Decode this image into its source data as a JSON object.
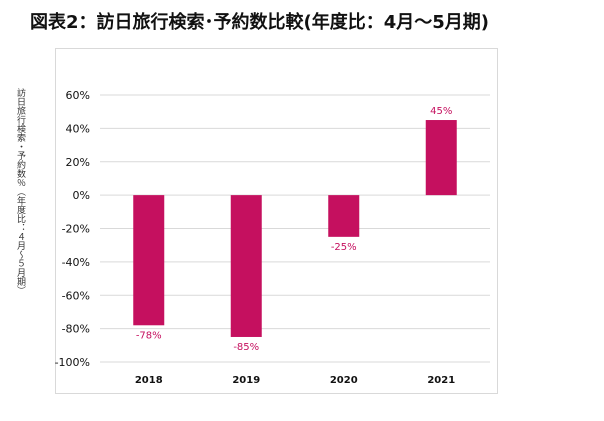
{
  "page": {
    "title": "図表2：訪日旅行検索･予約数比較(年度比：4月～5月期)"
  },
  "chart_data": {
    "type": "bar",
    "title": "図表2：訪日旅行検索･予約数比較(年度比：4月～5月期)",
    "ylabel": "訪日旅行検索・予約数％（年度比：４月～５月期）",
    "xlabel": "",
    "categories": [
      "2018",
      "2019",
      "2020",
      "2021"
    ],
    "values": [
      -78,
      -85,
      -25,
      45
    ],
    "data_labels": [
      "-78%",
      "-85%",
      "-25%",
      "45%"
    ],
    "ylim": [
      -100,
      60
    ],
    "yticks": [
      60,
      40,
      20,
      0,
      -20,
      -40,
      -60,
      -80,
      -100
    ],
    "ytick_labels": [
      "60%",
      "40%",
      "20%",
      "0%",
      "-20%",
      "-40%",
      "-60%",
      "-80%",
      "-100%"
    ],
    "grid": true,
    "legend": "none",
    "colors": {
      "bar": "#c5105f",
      "label": "#c5105f",
      "grid": "#d9d9d9",
      "axis_text": "#111111"
    }
  }
}
